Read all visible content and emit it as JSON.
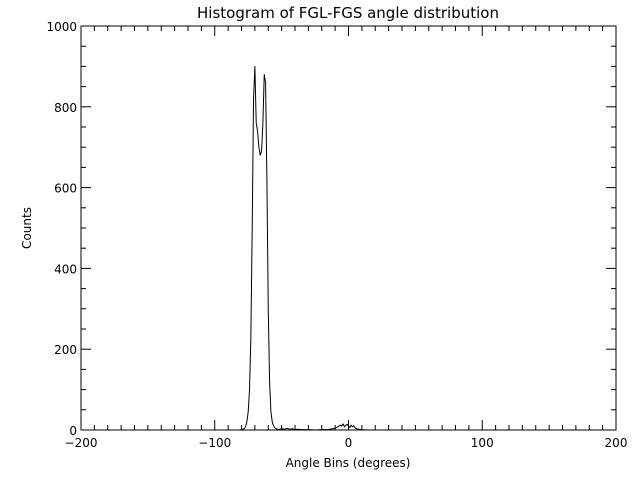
{
  "chart_data": {
    "type": "line",
    "title": "Histogram of FGL-FGS angle distribution",
    "xlabel": "Angle Bins (degrees)",
    "ylabel": "Counts",
    "xlim": [
      -200,
      200
    ],
    "ylim": [
      0,
      1000
    ],
    "x_major_ticks": [
      -200,
      -100,
      0,
      100,
      200
    ],
    "x_tick_labels": [
      "−200",
      "−100",
      "0",
      "100",
      "200"
    ],
    "x_minor_step": 10,
    "y_major_ticks": [
      0,
      200,
      400,
      600,
      800,
      1000
    ],
    "y_tick_labels": [
      "0",
      "200",
      "400",
      "600",
      "800",
      "1000"
    ],
    "y_minor_step": 50,
    "grid": false,
    "legend": "none",
    "line_color": "#000000",
    "series": [
      {
        "x": [
          -200,
          -82,
          -80,
          -78,
          -77,
          -76,
          -75,
          -74,
          -73,
          -72,
          -71,
          -70,
          -69,
          -68,
          -67,
          -66,
          -65,
          -64,
          -63,
          -62,
          -61,
          -60,
          -59,
          -58,
          -57,
          -56,
          -55,
          -54,
          -53,
          -52,
          -50,
          -48,
          -46,
          -44,
          -42,
          -40,
          -38,
          -35,
          -30,
          -25,
          -20,
          -16,
          -14,
          -12,
          -10,
          -8,
          -6,
          -5,
          -4,
          -3,
          -2,
          -1,
          0,
          1,
          2,
          3,
          4,
          5,
          6,
          8,
          10,
          14,
          20,
          40,
          100,
          200
        ],
        "y": [
          0,
          0,
          1,
          3,
          8,
          20,
          45,
          100,
          230,
          500,
          820,
          900,
          760,
          740,
          700,
          680,
          690,
          760,
          880,
          860,
          620,
          300,
          120,
          45,
          20,
          10,
          5,
          3,
          2,
          1,
          3,
          2,
          4,
          2,
          3,
          1,
          2,
          1,
          1,
          0,
          1,
          1,
          2,
          3,
          4,
          8,
          12,
          10,
          15,
          8,
          12,
          14,
          10,
          6,
          12,
          8,
          10,
          5,
          3,
          2,
          1,
          0,
          0,
          0,
          0,
          0
        ]
      }
    ]
  }
}
